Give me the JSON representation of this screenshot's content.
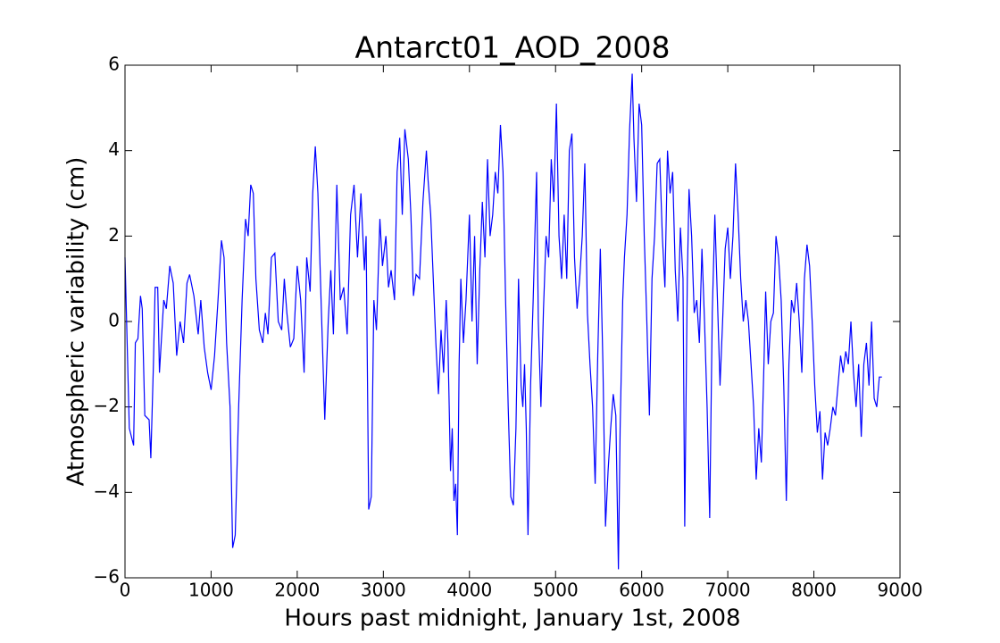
{
  "chart_data": {
    "type": "line",
    "title": "Antarct01_AOD_2008",
    "x_label": "Hours past midnight, January 1st, 2008",
    "y_label": "Atmospheric variability (cm)",
    "xlim": [
      0,
      9000
    ],
    "ylim": [
      -6,
      6
    ],
    "xticks": [
      0,
      1000,
      2000,
      3000,
      4000,
      5000,
      6000,
      7000,
      8000,
      9000
    ],
    "yticks": [
      {
        "value": -6,
        "label": "−6"
      },
      {
        "value": -4,
        "label": "−4"
      },
      {
        "value": -2,
        "label": "−2"
      },
      0,
      2,
      4,
      6
    ],
    "grid": false,
    "x": [
      0,
      50,
      100,
      120,
      150,
      180,
      200,
      230,
      280,
      300,
      330,
      350,
      380,
      400,
      450,
      480,
      520,
      560,
      600,
      640,
      680,
      720,
      750,
      800,
      850,
      880,
      920,
      960,
      1000,
      1040,
      1080,
      1120,
      1150,
      1180,
      1220,
      1250,
      1280,
      1320,
      1360,
      1400,
      1430,
      1460,
      1490,
      1520,
      1560,
      1600,
      1630,
      1660,
      1700,
      1740,
      1780,
      1820,
      1850,
      1880,
      1920,
      1960,
      2000,
      2040,
      2080,
      2110,
      2150,
      2180,
      2210,
      2240,
      2280,
      2320,
      2360,
      2390,
      2420,
      2460,
      2500,
      2540,
      2580,
      2620,
      2660,
      2700,
      2740,
      2780,
      2800,
      2830,
      2860,
      2890,
      2920,
      2960,
      2990,
      3030,
      3060,
      3090,
      3130,
      3160,
      3190,
      3220,
      3250,
      3290,
      3320,
      3350,
      3380,
      3420,
      3460,
      3500,
      3520,
      3550,
      3580,
      3610,
      3640,
      3670,
      3700,
      3730,
      3750,
      3780,
      3800,
      3820,
      3840,
      3860,
      3880,
      3900,
      3930,
      3960,
      4000,
      4030,
      4060,
      4090,
      4120,
      4150,
      4180,
      4210,
      4240,
      4270,
      4300,
      4330,
      4360,
      4390,
      4420,
      4450,
      4480,
      4510,
      4540,
      4570,
      4600,
      4620,
      4640,
      4660,
      4680,
      4710,
      4740,
      4780,
      4800,
      4830,
      4860,
      4890,
      4920,
      4950,
      4980,
      5010,
      5040,
      5070,
      5100,
      5130,
      5160,
      5190,
      5220,
      5250,
      5280,
      5310,
      5340,
      5370,
      5400,
      5430,
      5460,
      5490,
      5520,
      5550,
      5580,
      5610,
      5640,
      5670,
      5700,
      5730,
      5750,
      5780,
      5800,
      5830,
      5860,
      5890,
      5910,
      5940,
      5970,
      6000,
      6030,
      6060,
      6090,
      6120,
      6150,
      6180,
      6210,
      6240,
      6270,
      6300,
      6330,
      6360,
      6390,
      6420,
      6450,
      6480,
      6500,
      6530,
      6550,
      6580,
      6610,
      6640,
      6670,
      6700,
      6730,
      6760,
      6790,
      6820,
      6850,
      6880,
      6910,
      6940,
      6970,
      7000,
      7030,
      7060,
      7090,
      7120,
      7150,
      7180,
      7210,
      7240,
      7270,
      7300,
      7330,
      7360,
      7390,
      7420,
      7440,
      7470,
      7500,
      7530,
      7560,
      7590,
      7620,
      7650,
      7680,
      7710,
      7740,
      7770,
      7800,
      7830,
      7860,
      7890,
      7920,
      7950,
      7980,
      8010,
      8040,
      8070,
      8100,
      8130,
      8160,
      8190,
      8220,
      8250,
      8280,
      8310,
      8340,
      8370,
      8400,
      8430,
      8460,
      8490,
      8520,
      8550,
      8580,
      8610,
      8640,
      8670,
      8700,
      8730,
      8760,
      8790
    ],
    "series": [
      {
        "color": "#0000ff",
        "values": [
          1.5,
          -2.5,
          -2.9,
          -0.5,
          -0.4,
          0.6,
          0.3,
          -2.2,
          -2.3,
          -3.2,
          -1.0,
          0.8,
          0.8,
          -1.2,
          0.5,
          0.3,
          1.3,
          0.9,
          -0.8,
          0.0,
          -0.5,
          0.9,
          1.1,
          0.6,
          -0.3,
          0.5,
          -0.6,
          -1.2,
          -1.6,
          -0.8,
          0.5,
          1.9,
          1.5,
          -0.5,
          -2.0,
          -5.3,
          -5.0,
          -2.0,
          0.5,
          2.4,
          2.0,
          3.2,
          3.0,
          1.0,
          -0.2,
          -0.5,
          0.2,
          -0.3,
          1.5,
          1.6,
          0.0,
          -0.2,
          1.0,
          0.2,
          -0.6,
          -0.4,
          1.3,
          0.5,
          -1.2,
          1.5,
          0.7,
          3.0,
          4.1,
          3.0,
          0.3,
          -2.3,
          0.0,
          1.2,
          -0.3,
          3.2,
          0.5,
          0.8,
          -0.3,
          2.5,
          3.2,
          1.5,
          3.0,
          1.2,
          2.0,
          -4.4,
          -4.1,
          0.5,
          -0.2,
          2.4,
          1.3,
          2.0,
          0.8,
          1.2,
          0.5,
          3.5,
          4.3,
          2.5,
          4.5,
          3.8,
          2.5,
          0.6,
          1.1,
          1.0,
          2.8,
          4.0,
          3.3,
          2.5,
          1.0,
          -0.5,
          -1.7,
          -0.2,
          -1.2,
          0.5,
          -0.5,
          -3.5,
          -2.5,
          -4.2,
          -3.8,
          -5.0,
          -1.0,
          1.0,
          -0.5,
          0.5,
          2.5,
          0.0,
          2.0,
          -1.0,
          1.2,
          2.8,
          1.5,
          3.8,
          2.0,
          2.5,
          3.5,
          3.0,
          4.6,
          3.5,
          0.5,
          -2.0,
          -4.1,
          -4.3,
          -2.5,
          1.0,
          -1.5,
          -2.0,
          -1.0,
          -2.5,
          -5.0,
          -1.5,
          0.5,
          3.5,
          0.0,
          -2.0,
          0.3,
          2.0,
          1.5,
          3.8,
          2.8,
          5.1,
          2.0,
          1.0,
          2.5,
          1.0,
          4.0,
          4.4,
          1.5,
          0.3,
          1.0,
          2.0,
          3.7,
          0.2,
          -1.0,
          -2.0,
          -3.8,
          -0.8,
          1.7,
          -1.0,
          -4.8,
          -3.5,
          -2.5,
          -1.7,
          -2.2,
          -5.8,
          -2.5,
          0.5,
          1.5,
          2.5,
          4.5,
          5.8,
          4.3,
          2.8,
          5.1,
          4.6,
          2.0,
          0.0,
          -2.2,
          1.0,
          2.0,
          3.7,
          3.8,
          2.0,
          0.8,
          4.0,
          3.0,
          3.5,
          1.2,
          0.0,
          2.2,
          1.0,
          -4.8,
          1.0,
          3.1,
          2.0,
          0.2,
          0.5,
          -0.5,
          1.7,
          0.0,
          -2.0,
          -4.6,
          0.2,
          2.5,
          0.5,
          -1.5,
          0.0,
          1.7,
          2.2,
          1.0,
          2.0,
          3.7,
          2.5,
          1.0,
          0.0,
          0.5,
          0.0,
          -1.0,
          -2.0,
          -3.7,
          -2.5,
          -3.3,
          -1.0,
          0.7,
          -1.0,
          0.0,
          0.2,
          2.0,
          1.5,
          0.5,
          -1.5,
          -4.2,
          -1.0,
          0.5,
          0.2,
          0.9,
          0.0,
          -1.2,
          1.0,
          1.8,
          1.3,
          0.0,
          -1.5,
          -2.6,
          -2.1,
          -3.7,
          -2.6,
          -2.9,
          -2.5,
          -2.0,
          -2.2,
          -1.5,
          -0.8,
          -1.2,
          -0.7,
          -1.0,
          0.0,
          -1.2,
          -2.0,
          -1.0,
          -2.7,
          -1.0,
          -0.5,
          -1.5,
          0.0,
          -1.8,
          -2.0,
          -1.3,
          -1.3
        ]
      }
    ]
  }
}
